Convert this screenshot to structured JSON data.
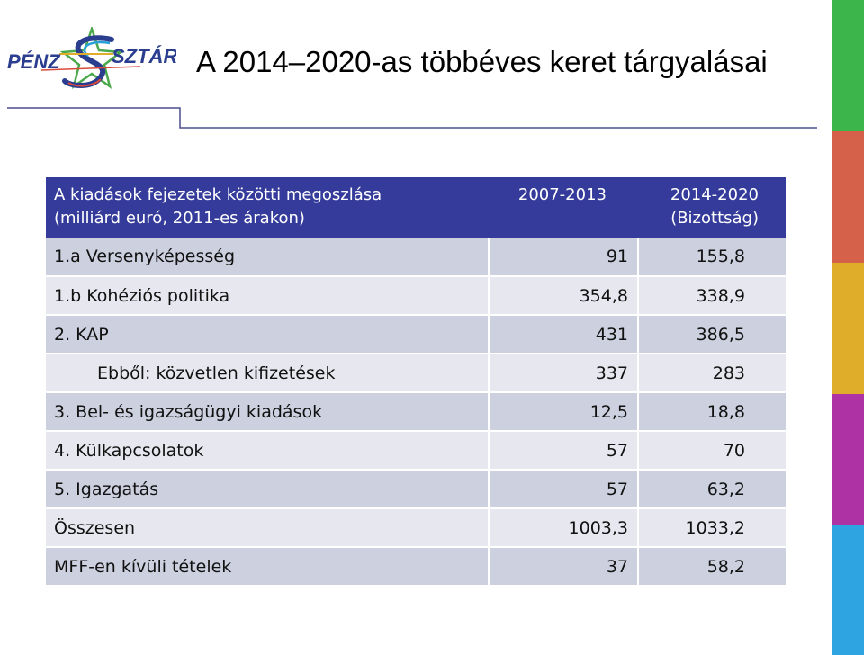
{
  "logo": {
    "text_left": "PÉNZ",
    "text_right": "SZTÁR",
    "icon": "star-s-logo-icon"
  },
  "title": "A 2014–2020-as többéves keret tárgyalásai",
  "colors": {
    "header_bg": "#353b9a",
    "row_odd": "#cdd0df",
    "row_even": "#e7e8ef",
    "bar": [
      "#3cb54a",
      "#d5614a",
      "#e0ad2a",
      "#ae32a4",
      "#2ea5e0"
    ]
  },
  "table": {
    "header": {
      "label_line1": "A kiadások fejezetek közötti megoszlása",
      "label_line2": "(milliárd euró, 2011-es árakon)",
      "col1": "2007-2013",
      "col2_line1": "2014-2020",
      "col2_line2": "(Bizottság)"
    },
    "rows": [
      {
        "label": "1.a Versenyképesség",
        "v1": "91",
        "v2": "155,8"
      },
      {
        "label": "1.b Kohéziós politika",
        "v1": "354,8",
        "v2": "338,9"
      },
      {
        "label": "2. KAP",
        "v1": "431",
        "v2": "386,5"
      },
      {
        "label": "Ebből: közvetlen kifizetések",
        "v1": "337",
        "v2": "283"
      },
      {
        "label": "3. Bel- és igazságügyi kiadások",
        "v1": "12,5",
        "v2": "18,8"
      },
      {
        "label": "4. Külkapcsolatok",
        "v1": "57",
        "v2": "70"
      },
      {
        "label": "5. Igazgatás",
        "v1": "57",
        "v2": "63,2"
      },
      {
        "label": "Összesen",
        "v1": "1003,3",
        "v2": "1033,2"
      },
      {
        "label": "MFF-en kívüli tételek",
        "v1": "37",
        "v2": "58,2"
      }
    ]
  }
}
